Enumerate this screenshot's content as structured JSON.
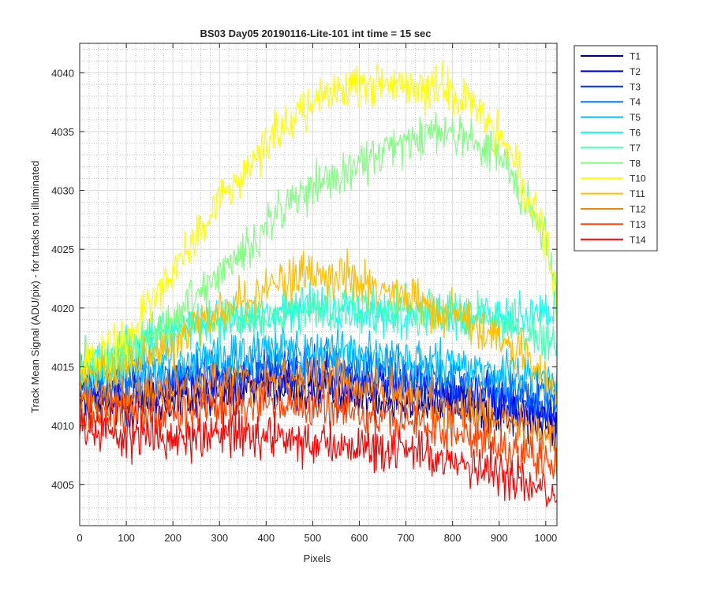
{
  "chart_data": {
    "type": "line",
    "title": "BS03 Day05 20190116-Lite-101 int time = 15 sec",
    "xlabel": "Pixels",
    "ylabel": "Track Mean Signal (ADU/pix) - for tracks not illuminated",
    "xlim": [
      0,
      1024
    ],
    "ylim": [
      4001.5,
      4042.5
    ],
    "x_ticks": [
      0,
      100,
      200,
      300,
      400,
      500,
      600,
      700,
      800,
      900,
      1000
    ],
    "y_ticks": [
      4005,
      4010,
      4015,
      4020,
      4025,
      4030,
      4035,
      4040
    ],
    "grid": true,
    "minor_grid": true,
    "legend_position": "outside-top-right",
    "series": [
      {
        "name": "T1",
        "color": "#00008f",
        "x": [
          0,
          100,
          200,
          300,
          400,
          500,
          600,
          700,
          800,
          900,
          1000,
          1024
        ],
        "y": [
          4012,
          4011.5,
          4012,
          4012.5,
          4013,
          4013,
          4012.5,
          4012,
          4012,
          4011,
          4010,
          4009.5
        ]
      },
      {
        "name": "T2",
        "color": "#0000d9",
        "x": [
          0,
          100,
          200,
          300,
          400,
          500,
          600,
          700,
          800,
          900,
          1000,
          1024
        ],
        "y": [
          4012.5,
          4012.5,
          4013,
          4013.5,
          4014,
          4014,
          4013.5,
          4013,
          4012.5,
          4012,
          4011,
          4010
        ]
      },
      {
        "name": "T3",
        "color": "#0030ff",
        "x": [
          0,
          100,
          200,
          300,
          400,
          500,
          600,
          700,
          800,
          900,
          1000,
          1024
        ],
        "y": [
          4013,
          4013,
          4013.5,
          4014,
          4014.5,
          4014.5,
          4014,
          4013.5,
          4013,
          4012.5,
          4011.5,
          4011
        ]
      },
      {
        "name": "T4",
        "color": "#0078ff",
        "x": [
          0,
          100,
          200,
          300,
          400,
          500,
          600,
          700,
          800,
          900,
          1000,
          1024
        ],
        "y": [
          4013.5,
          4014,
          4014.5,
          4015,
          4015.5,
          4015.5,
          4015,
          4014.5,
          4014,
          4013.5,
          4012.5,
          4012
        ]
      },
      {
        "name": "T5",
        "color": "#00bfff",
        "x": [
          0,
          100,
          200,
          300,
          400,
          500,
          600,
          700,
          800,
          900,
          1000,
          1024
        ],
        "y": [
          4014,
          4015,
          4015.5,
          4016,
          4016.5,
          4016.5,
          4016,
          4015.5,
          4015,
          4014.5,
          4014,
          4013
        ]
      },
      {
        "name": "T6",
        "color": "#10ffef",
        "x": [
          0,
          100,
          200,
          300,
          400,
          500,
          600,
          700,
          800,
          900,
          1000,
          1024
        ],
        "y": [
          4015,
          4016.5,
          4018,
          4019,
          4019.5,
          4020,
          4019.5,
          4019.5,
          4019.5,
          4019.5,
          4019.5,
          4019.5
        ]
      },
      {
        "name": "T7",
        "color": "#48ffb7",
        "x": [
          0,
          100,
          200,
          300,
          400,
          500,
          600,
          700,
          800,
          900,
          1000,
          1024
        ],
        "y": [
          4015,
          4016.5,
          4018,
          4019,
          4019.5,
          4020,
          4020,
          4020,
          4019.5,
          4019,
          4017.5,
          4016.5
        ]
      },
      {
        "name": "T8",
        "color": "#80ff80",
        "x": [
          0,
          100,
          200,
          300,
          400,
          500,
          600,
          700,
          800,
          900,
          1000,
          1024
        ],
        "y": [
          4014.5,
          4016,
          4019,
          4023,
          4027,
          4030,
          4032.5,
          4034,
          4035,
          4033,
          4026,
          4021
        ]
      },
      {
        "name": "T10",
        "color": "#ffff00",
        "x": [
          0,
          100,
          200,
          300,
          400,
          500,
          600,
          700,
          800,
          900,
          1000,
          1024
        ],
        "y": [
          4015,
          4017.5,
          4023,
          4029,
          4034,
          4037.5,
          4039,
          4039,
          4038.5,
          4035,
          4026,
          4020
        ]
      },
      {
        "name": "T11",
        "color": "#ffbf00",
        "x": [
          0,
          100,
          200,
          300,
          400,
          500,
          600,
          700,
          800,
          900,
          1000,
          1024
        ],
        "y": [
          4014,
          4015,
          4017,
          4019.5,
          4021.5,
          4023,
          4022.5,
          4021,
          4019.5,
          4017.5,
          4014.5,
          4012.5
        ]
      },
      {
        "name": "T12",
        "color": "#ff8000",
        "x": [
          0,
          100,
          200,
          300,
          400,
          500,
          600,
          700,
          800,
          900,
          1000,
          1024
        ],
        "y": [
          4012.5,
          4012.5,
          4013,
          4013.5,
          4014,
          4014,
          4013.5,
          4012.5,
          4011.5,
          4010.5,
          4009,
          4008
        ]
      },
      {
        "name": "T13",
        "color": "#ff4000",
        "x": [
          0,
          100,
          200,
          300,
          400,
          500,
          600,
          700,
          800,
          900,
          1000,
          1024
        ],
        "y": [
          4011.5,
          4011,
          4011,
          4011.5,
          4012,
          4011.5,
          4011,
          4010.5,
          4009.5,
          4008.5,
          4007,
          4006.5
        ]
      },
      {
        "name": "T14",
        "color": "#ff0000",
        "x": [
          0,
          100,
          200,
          300,
          400,
          500,
          600,
          700,
          800,
          900,
          1000,
          1024
        ],
        "y": [
          4010,
          4009,
          4009,
          4009,
          4009,
          4008.5,
          4008,
          4008,
          4007,
          4006,
          4005,
          4004.5
        ]
      }
    ]
  }
}
